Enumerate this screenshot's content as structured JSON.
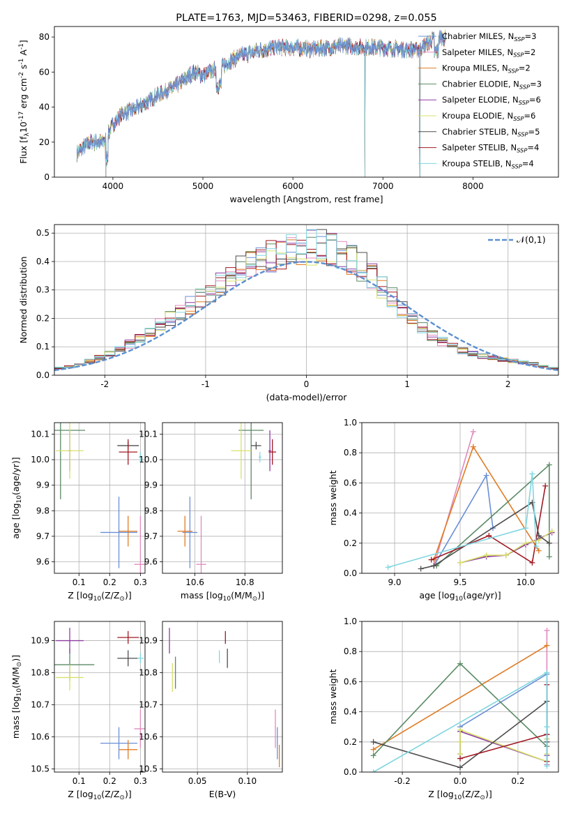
{
  "figure": {
    "title": "PLATE=1763, MJD=53463, FIBERID=0298, z=0.055"
  },
  "legend_labels": [
    "Chabrier MILES, N$_{SSP}$=3",
    "Salpeter MILES, N$_{SSP}$=2",
    "Kroupa MILES, N$_{SSP}$=2",
    "Chabrier ELODIE, N$_{SSP}$=3",
    "Salpeter ELODIE, N$_{SSP}$=6",
    "Kroupa ELODIE, N$_{SSP}$=6",
    "Chabrier STELIB, N$_{SSP}$=5",
    "Salpeter STELIB, N$_{SSP}$=4",
    "Kroupa STELIB, N$_{SSP}$=4"
  ],
  "legend_display": [
    [
      "Chabrier MILES, N",
      "SSP",
      "=3"
    ],
    [
      "Salpeter MILES, N",
      "SSP",
      "=2"
    ],
    [
      "Kroupa MILES, N",
      "SSP",
      "=2"
    ],
    [
      "Chabrier ELODIE, N",
      "SSP",
      "=3"
    ],
    [
      "Salpeter ELODIE, N",
      "SSP",
      "=6"
    ],
    [
      "Kroupa ELODIE, N",
      "SSP",
      "=6"
    ],
    [
      "Chabrier STELIB, N",
      "SSP",
      "=5"
    ],
    [
      "Salpeter STELIB, N",
      "SSP",
      "=4"
    ],
    [
      "Kroupa STELIB, N",
      "SSP",
      "=4"
    ]
  ],
  "model_colors": [
    "#6a8fd6",
    "#e08abe",
    "#e07b24",
    "#5a8a64",
    "#8e3aa0",
    "#d8e06a",
    "#4d4d4d",
    "#a01822",
    "#7fd6e0"
  ],
  "chart_data": [
    {
      "id": "spectrum",
      "type": "line",
      "title": "PLATE=1763, MJD=53463, FIBERID=0298, z=0.055",
      "xlabel": "wavelength [Angstrom, rest frame]",
      "ylabel": "Flux [f$_\\lambda$10$^{-17}$ erg cm$^{-2}$ s$^{-1}$ A$^{-1}$]",
      "xlim": [
        3350,
        8950
      ],
      "ylim": [
        0,
        86
      ],
      "xticks": [
        4000,
        5000,
        6000,
        7000,
        8000
      ],
      "yticks": [
        0,
        20,
        40,
        60,
        80
      ],
      "grid": false,
      "legend_position": "upper-right",
      "continuum_x": [
        3600,
        3750,
        3900,
        4000,
        4100,
        4300,
        4500,
        4700,
        4900,
        5000,
        5200,
        5400,
        5600,
        5800,
        6000,
        6200,
        6400,
        6600,
        6800,
        7000,
        7200,
        7400,
        7600,
        7700
      ],
      "continuum_y": [
        14,
        20,
        20,
        30,
        36,
        40,
        47,
        52,
        60,
        58,
        63,
        69,
        72,
        74,
        74,
        73,
        74,
        75,
        74,
        74,
        73,
        73,
        80,
        79
      ],
      "dropouts": [
        3920,
        6800,
        7410
      ],
      "residual_envelope": 2.5
    },
    {
      "id": "residuals",
      "type": "histogram",
      "xlabel": "(data-model)/error",
      "ylabel": "Normed distribution",
      "xlim": [
        -2.5,
        2.5
      ],
      "ylim": [
        0,
        0.53
      ],
      "xticks": [
        -2,
        -1,
        0,
        1,
        2
      ],
      "yticks": [
        0,
        0.1,
        0.2,
        0.3,
        0.4,
        0.5
      ],
      "grid": true,
      "legend_position": "upper-right",
      "reference_label": "$\\mathcal{N}(0,1)$",
      "bins": [
        -2.5,
        -2.4,
        -2.3,
        -2.2,
        -2.1,
        -2.0,
        -1.9,
        -1.8,
        -1.7,
        -1.6,
        -1.5,
        -1.4,
        -1.3,
        -1.2,
        -1.1,
        -1.0,
        -0.9,
        -0.8,
        -0.7,
        -0.6,
        -0.5,
        -0.4,
        -0.3,
        -0.2,
        -0.1,
        0.0,
        0.1,
        0.2,
        0.3,
        0.4,
        0.5,
        0.6,
        0.7,
        0.8,
        0.9,
        1.0,
        1.1,
        1.2,
        1.3,
        1.4,
        1.5,
        1.6,
        1.7,
        1.8,
        1.9,
        2.0,
        2.1,
        2.2,
        2.3,
        2.4,
        2.5
      ],
      "base_density": [
        0.025,
        0.03,
        0.04,
        0.05,
        0.062,
        0.075,
        0.09,
        0.11,
        0.13,
        0.15,
        0.175,
        0.2,
        0.225,
        0.25,
        0.27,
        0.295,
        0.32,
        0.345,
        0.37,
        0.39,
        0.41,
        0.42,
        0.43,
        0.44,
        0.445,
        0.45,
        0.45,
        0.44,
        0.425,
        0.405,
        0.38,
        0.35,
        0.31,
        0.27,
        0.23,
        0.195,
        0.165,
        0.14,
        0.12,
        0.1,
        0.085,
        0.075,
        0.068,
        0.06,
        0.055,
        0.05,
        0.045,
        0.04,
        0.032,
        0.025
      ]
    },
    {
      "id": "age-vs-z",
      "type": "scatter",
      "xlabel": "Z [log$_{10}$(Z/Z$_\\odot$)]",
      "ylabel": "age [log$_{10}$(age/yr)]",
      "xlim": [
        0.02,
        0.315
      ],
      "ylim": [
        9.555,
        10.145
      ],
      "xticks": [
        0.1,
        0.2,
        0.3
      ],
      "yticks": [
        9.6,
        9.7,
        9.8,
        9.9,
        10.0,
        10.1
      ],
      "grid": true,
      "points": [
        {
          "x": 0.23,
          "y": 9.715,
          "dx": 0.06,
          "dy": 0.14
        },
        {
          "x": 0.3,
          "y": 9.59,
          "dx": 0.02,
          "dy": 0.19
        },
        {
          "x": 0.26,
          "y": 9.72,
          "dx": 0.03,
          "dy": 0.06
        },
        {
          "x": 0.04,
          "y": 10.115,
          "dx": 0.08,
          "dy": 0.27
        },
        {
          "x": 0.07,
          "y": 10.035,
          "dx": 0.005,
          "dy": 0.08
        },
        {
          "x": 0.07,
          "y": 10.035,
          "dx": 0.045,
          "dy": 0.11
        },
        {
          "x": 0.26,
          "y": 10.055,
          "dx": 0.035,
          "dy": 0.015
        },
        {
          "x": 0.26,
          "y": 10.03,
          "dx": 0.03,
          "dy": 0.05
        },
        {
          "x": 0.3,
          "y": 10.01,
          "dx": 0.005,
          "dy": 0.02
        }
      ]
    },
    {
      "id": "age-vs-mass",
      "type": "scatter",
      "xlabel": "mass [log$_{10}$(M/M$_\\odot$)]",
      "ylabel": "",
      "xlim": [
        10.47,
        10.95
      ],
      "ylim": [
        9.555,
        10.145
      ],
      "xticks": [
        10.6,
        10.8
      ],
      "yticks": [
        9.6,
        9.7,
        9.8,
        9.9,
        10.0,
        10.1
      ],
      "grid": true,
      "points": [
        {
          "x": 10.58,
          "y": 9.715,
          "dx": 0.03,
          "dy": 0.14
        },
        {
          "x": 10.625,
          "y": 9.59,
          "dx": 0.02,
          "dy": 0.19
        },
        {
          "x": 10.56,
          "y": 9.72,
          "dx": 0.03,
          "dy": 0.06
        },
        {
          "x": 10.825,
          "y": 10.115,
          "dx": 0.05,
          "dy": 0.27
        },
        {
          "x": 10.9,
          "y": 10.035,
          "dx": 0.005,
          "dy": 0.08
        },
        {
          "x": 10.785,
          "y": 10.035,
          "dx": 0.04,
          "dy": 0.11
        },
        {
          "x": 10.845,
          "y": 10.055,
          "dx": 0.02,
          "dy": 0.015
        },
        {
          "x": 10.91,
          "y": 10.03,
          "dx": 0.015,
          "dy": 0.05
        },
        {
          "x": 10.86,
          "y": 10.01,
          "dx": 0.005,
          "dy": 0.02
        }
      ]
    },
    {
      "id": "mass-weight-vs-age",
      "type": "line",
      "xlabel": "age [log$_{10}$(age/yr)]",
      "ylabel": "mass weight",
      "xlim": [
        8.75,
        10.25
      ],
      "ylim": [
        0,
        1.0
      ],
      "xticks": [
        9.0,
        9.5,
        10.0
      ],
      "yticks": [
        0.0,
        0.2,
        0.4,
        0.6,
        0.8,
        1.0
      ],
      "grid": true,
      "series": [
        {
          "x": [
            9.3,
            9.7,
            9.75
          ],
          "y": [
            0.05,
            0.65,
            0.3
          ]
        },
        {
          "x": [
            9.3,
            9.6
          ],
          "y": [
            0.05,
            0.94
          ]
        },
        {
          "x": [
            9.3,
            9.6,
            10.1
          ],
          "y": [
            0.09,
            0.84,
            0.15
          ]
        },
        {
          "x": [
            9.32,
            10.18,
            10.18
          ],
          "y": [
            0.05,
            0.72,
            0.11
          ]
        },
        {
          "x": [
            9.5,
            9.7,
            9.85,
            10.0,
            10.1,
            10.2
          ],
          "y": [
            0.07,
            0.11,
            0.12,
            0.19,
            0.23,
            0.27
          ]
        },
        {
          "x": [
            9.5,
            9.7,
            9.85,
            10.0,
            10.1,
            10.2
          ],
          "y": [
            0.07,
            0.12,
            0.12,
            0.2,
            0.22,
            0.28
          ]
        },
        {
          "x": [
            9.2,
            9.3,
            10.05,
            10.1,
            10.18
          ],
          "y": [
            0.03,
            0.05,
            0.47,
            0.25,
            0.2
          ]
        },
        {
          "x": [
            9.28,
            9.72,
            10.05,
            10.15
          ],
          "y": [
            0.09,
            0.25,
            0.07,
            0.58
          ]
        },
        {
          "x": [
            8.95,
            10.0,
            10.05,
            10.08
          ],
          "y": [
            0.04,
            0.3,
            0.66,
            0.18
          ]
        }
      ]
    },
    {
      "id": "mass-vs-z",
      "type": "scatter",
      "xlabel": "Z [log$_{10}$(Z/Z$_\\odot$)]",
      "ylabel": "mass [log$_{10}$(M/M$_\\odot$)]",
      "xlim": [
        0.02,
        0.315
      ],
      "ylim": [
        10.49,
        10.96
      ],
      "xticks": [
        0.1,
        0.2,
        0.3
      ],
      "yticks": [
        10.5,
        10.6,
        10.7,
        10.8,
        10.9
      ],
      "grid": true,
      "points": [
        {
          "x": 0.23,
          "y": 10.58,
          "dx": 0.06,
          "dy": 0.05
        },
        {
          "x": 0.3,
          "y": 10.625,
          "dx": 0.02,
          "dy": 0.06
        },
        {
          "x": 0.26,
          "y": 10.56,
          "dx": 0.03,
          "dy": 0.03
        },
        {
          "x": 0.07,
          "y": 10.825,
          "dx": 0.08,
          "dy": 0.05
        },
        {
          "x": 0.07,
          "y": 10.9,
          "dx": 0.045,
          "dy": 0.04
        },
        {
          "x": 0.07,
          "y": 10.785,
          "dx": 0.045,
          "dy": 0.04
        },
        {
          "x": 0.26,
          "y": 10.845,
          "dx": 0.035,
          "dy": 0.025
        },
        {
          "x": 0.26,
          "y": 10.91,
          "dx": 0.035,
          "dy": 0.02
        },
        {
          "x": 0.3,
          "y": 10.845,
          "dx": 0.01,
          "dy": 0.015
        }
      ]
    },
    {
      "id": "mass-vs-ebv",
      "type": "scatter",
      "xlabel": "E(B-V)",
      "ylabel": "",
      "xlim": [
        0.015,
        0.135
      ],
      "ylim": [
        10.49,
        10.96
      ],
      "xticks": [
        0.05,
        0.1
      ],
      "yticks": [
        10.5,
        10.6,
        10.7,
        10.8,
        10.9
      ],
      "grid": true,
      "points": [
        {
          "x": 0.13,
          "y": 10.58,
          "dx": 0.0,
          "dy": 0.05
        },
        {
          "x": 0.128,
          "y": 10.625,
          "dx": 0.0,
          "dy": 0.06
        },
        {
          "x": 0.132,
          "y": 10.54,
          "dx": 0.0,
          "dy": 0.035
        },
        {
          "x": 0.028,
          "y": 10.8,
          "dx": 0.0,
          "dy": 0.05
        },
        {
          "x": 0.022,
          "y": 10.9,
          "dx": 0.0,
          "dy": 0.04
        },
        {
          "x": 0.025,
          "y": 10.785,
          "dx": 0.0,
          "dy": 0.045
        },
        {
          "x": 0.08,
          "y": 10.845,
          "dx": 0.0,
          "dy": 0.03
        },
        {
          "x": 0.078,
          "y": 10.91,
          "dx": 0.0,
          "dy": 0.02
        },
        {
          "x": 0.072,
          "y": 10.85,
          "dx": 0.0,
          "dy": 0.02
        }
      ]
    },
    {
      "id": "mass-weight-vs-z",
      "type": "line",
      "xlabel": "Z [log$_{10}$(Z/Z$_\\odot$)]",
      "ylabel": "mass weight",
      "xlim": [
        -0.34,
        0.34
      ],
      "ylim": [
        0,
        1.0
      ],
      "xticks": [
        -0.2,
        0.0,
        0.2
      ],
      "yticks": [
        0.0,
        0.2,
        0.4,
        0.6,
        0.8,
        1.0
      ],
      "grid": true,
      "series": [
        {
          "x": [
            0.0,
            0.3,
            0.3
          ],
          "y": [
            0.3,
            0.65,
            0.05
          ]
        },
        {
          "x": [
            0.3,
            0.3
          ],
          "y": [
            0.05,
            0.94
          ]
        },
        {
          "x": [
            -0.3,
            0.3
          ],
          "y": [
            0.15,
            0.84
          ]
        },
        {
          "x": [
            -0.3,
            0.0,
            0.3
          ],
          "y": [
            0.11,
            0.72,
            0.17
          ]
        },
        {
          "x": [
            0.0,
            0.0,
            0.0,
            0.3,
            0.3,
            0.3
          ],
          "y": [
            0.12,
            0.2,
            0.27,
            0.07,
            0.11,
            0.22
          ]
        },
        {
          "x": [
            0.0,
            0.0,
            0.0,
            0.3,
            0.3,
            0.3
          ],
          "y": [
            0.12,
            0.2,
            0.28,
            0.07,
            0.12,
            0.22
          ]
        },
        {
          "x": [
            -0.3,
            0.0,
            0.3,
            0.3,
            0.3
          ],
          "y": [
            0.2,
            0.03,
            0.47,
            0.25,
            0.2
          ]
        },
        {
          "x": [
            0.0,
            0.3,
            0.3,
            0.3
          ],
          "y": [
            0.09,
            0.25,
            0.07,
            0.58
          ]
        },
        {
          "x": [
            -0.3,
            0.3,
            0.3,
            0.3
          ],
          "y": [
            0.0,
            0.66,
            0.3,
            0.04
          ]
        }
      ]
    }
  ]
}
